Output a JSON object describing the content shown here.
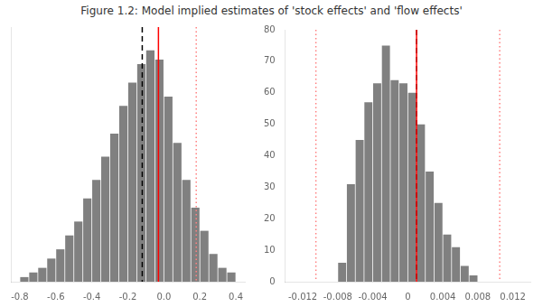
{
  "title": "Figure 1.2: Model implied estimates of 'stock effects' and 'flow effects'",
  "chart_data": [
    {
      "type": "histogram",
      "bins": [
        -0.8,
        -0.75,
        -0.7,
        -0.65,
        -0.6,
        -0.55,
        -0.5,
        -0.45,
        -0.4,
        -0.35,
        -0.3,
        -0.25,
        -0.2,
        -0.15,
        -0.1,
        -0.05,
        0.0,
        0.05,
        0.1,
        0.15,
        0.2,
        0.25,
        0.3,
        0.35,
        0.4
      ],
      "values": [
        1,
        2,
        3,
        5,
        7,
        10,
        13,
        18,
        22,
        27,
        32,
        38,
        43,
        47,
        50,
        48,
        40,
        30,
        22,
        16,
        11,
        6,
        3,
        2
      ],
      "color": "#808080",
      "xlim": [
        -0.85,
        0.45
      ],
      "xticks": [
        -0.8,
        -0.6,
        -0.4,
        -0.2,
        {
          "value": 0.0,
          "label": "0.0"
        },
        0.2,
        0.4
      ],
      "ylim": [
        0,
        55
      ],
      "yticks": [],
      "tick_labels": "x",
      "grid": false,
      "vlines": [
        {
          "x": -0.12,
          "color": "black",
          "line_style": "dashed"
        },
        {
          "x": -0.03,
          "color": "red",
          "line_style": "solid"
        },
        {
          "x": 0.18,
          "color": "#ff8080",
          "line_style": "dotted"
        }
      ]
    },
    {
      "type": "histogram",
      "bins": [
        -0.014,
        -0.013,
        -0.012,
        -0.011,
        -0.01,
        -0.009,
        -0.008,
        -0.007,
        -0.006,
        -0.005,
        -0.004,
        -0.003,
        -0.002,
        -0.001,
        0.0,
        0.001,
        0.002,
        0.003,
        0.004,
        0.005,
        0.006,
        0.007,
        0.008,
        0.009,
        0.01,
        0.011,
        0.012
      ],
      "values": [
        0,
        0,
        0,
        0,
        0,
        0,
        6,
        31,
        45,
        57,
        63,
        75,
        64,
        63,
        60,
        50,
        35,
        25,
        15,
        11,
        5,
        2,
        0,
        0,
        0,
        0
      ],
      "color": "#808080",
      "xlim": [
        -0.014,
        0.014
      ],
      "xticks": [
        -0.012,
        -0.008,
        -0.004,
        0,
        0.004,
        0.008,
        0.012
      ],
      "ylim": [
        0,
        80
      ],
      "yticks": [
        0,
        10,
        20,
        30,
        40,
        50,
        60,
        70,
        80
      ],
      "grid": false,
      "vlines": [
        {
          "x": 0.001,
          "color": "black",
          "line_style": "dashed"
        },
        {
          "x": 0.001,
          "color": "red",
          "line_style": "solid"
        },
        {
          "x": -0.0105,
          "color": "#ff8080",
          "line_style": "dotted"
        },
        {
          "x": 0.0105,
          "color": "#ff8080",
          "line_style": "dotted"
        }
      ]
    }
  ]
}
